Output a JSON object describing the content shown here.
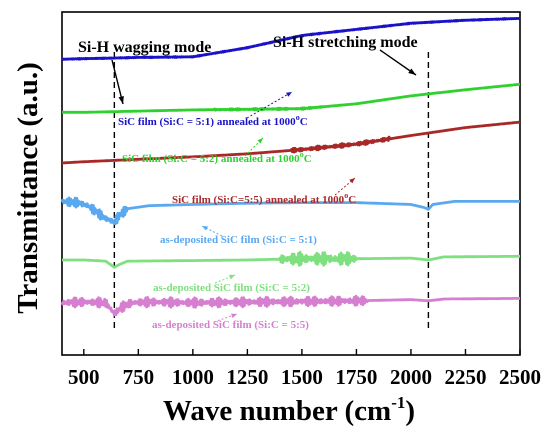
{
  "chart_data": {
    "type": "line",
    "xlabel": "Wave  number (cm",
    "xlabel_sup": "-1",
    "xlabel_close": ")",
    "ylabel": "Transmittance (a.u.)",
    "xlim": [
      400,
      2500
    ],
    "x_ticks": [
      "500",
      "750",
      "1000",
      "1250",
      "1500",
      "1750",
      "2000",
      "2250",
      "2500"
    ],
    "grid": false,
    "legend": "none",
    "annotations": [
      {
        "text": "Si-H wagging mode",
        "x": 640
      },
      {
        "text": "Si-H stretching mode",
        "x": 2080
      }
    ],
    "series": [
      {
        "name": "SiC film (Si:C = 5:1) annealed at 1000",
        "name_sup": "o",
        "name_tail": "C",
        "color": "#1a12c8",
        "x": [
          400,
          500,
          640,
          750,
          1000,
          1250,
          1500,
          1750,
          2000,
          2250,
          2500
        ],
        "y": [
          0.07,
          0.06,
          0.05,
          0.04,
          0.03,
          -0.12,
          -0.32,
          -0.42,
          -0.52,
          -0.57,
          -0.6
        ],
        "wave": {
          "amp": 0.004,
          "from": 400,
          "to": 2500
        }
      },
      {
        "name": "SiC film (Si:C = 5:2) annealed at 1000",
        "name_sup": "o",
        "name_tail": "C",
        "color": "#2fd02f",
        "x": [
          400,
          500,
          750,
          1000,
          1250,
          1500,
          1750,
          2000,
          2250,
          2500
        ],
        "y": [
          0.94,
          0.94,
          0.92,
          0.9,
          0.89,
          0.88,
          0.8,
          0.67,
          0.57,
          0.48
        ],
        "wave": {
          "amp": 0.008,
          "from": 1100,
          "to": 1600
        }
      },
      {
        "name": "SiC film (Si:C=5:5) annealed at 1000",
        "name_sup": "o",
        "name_tail": "C",
        "color": "#a82828",
        "x": [
          400,
          500,
          750,
          1000,
          1250,
          1500,
          1750,
          2000,
          2250,
          2500
        ],
        "y": [
          1.77,
          1.75,
          1.71,
          1.67,
          1.62,
          1.55,
          1.46,
          1.32,
          1.19,
          1.1
        ],
        "wave": {
          "amp": 0.02,
          "from": 1450,
          "to": 1900
        }
      },
      {
        "name": "as-deposited SiC film (Si:C = 5:1)",
        "color": "#5aa8f0",
        "x": [
          400,
          470,
          520,
          560,
          600,
          640,
          660,
          700,
          800,
          1000,
          1250,
          1500,
          1750,
          2000,
          2060,
          2080,
          2100,
          2200,
          2500
        ],
        "y": [
          2.4,
          2.42,
          2.47,
          2.58,
          2.68,
          2.74,
          2.64,
          2.52,
          2.47,
          2.45,
          2.43,
          2.42,
          2.42,
          2.45,
          2.5,
          2.53,
          2.45,
          2.4,
          2.4
        ],
        "wave": {
          "amp": 0.05,
          "from": 400,
          "to": 700
        }
      },
      {
        "name": "as-deposited SiC film (Si:C = 5:2)",
        "color": "#7fe07f",
        "x": [
          400,
          500,
          600,
          640,
          660,
          700,
          1000,
          1250,
          1500,
          1750,
          2000,
          2080,
          2150,
          2500
        ],
        "y": [
          3.36,
          3.36,
          3.38,
          3.48,
          3.44,
          3.38,
          3.37,
          3.36,
          3.34,
          3.34,
          3.33,
          3.36,
          3.31,
          3.3
        ],
        "wave": {
          "amp": 0.07,
          "from": 1400,
          "to": 1750
        }
      },
      {
        "name": "as-deposited SiC film (Si:C = 5:5)",
        "color": "#d67fd0",
        "x": [
          400,
          500,
          600,
          640,
          670,
          720,
          800,
          1000,
          1250,
          1500,
          1750,
          2000,
          2080,
          2150,
          2500
        ],
        "y": [
          4.06,
          4.05,
          4.06,
          4.24,
          4.14,
          4.06,
          4.05,
          4.06,
          4.05,
          4.04,
          4.03,
          4.01,
          4.03,
          4.0,
          3.99
        ],
        "wave": {
          "amp": 0.05,
          "from": 400,
          "to": 1800
        }
      }
    ]
  }
}
